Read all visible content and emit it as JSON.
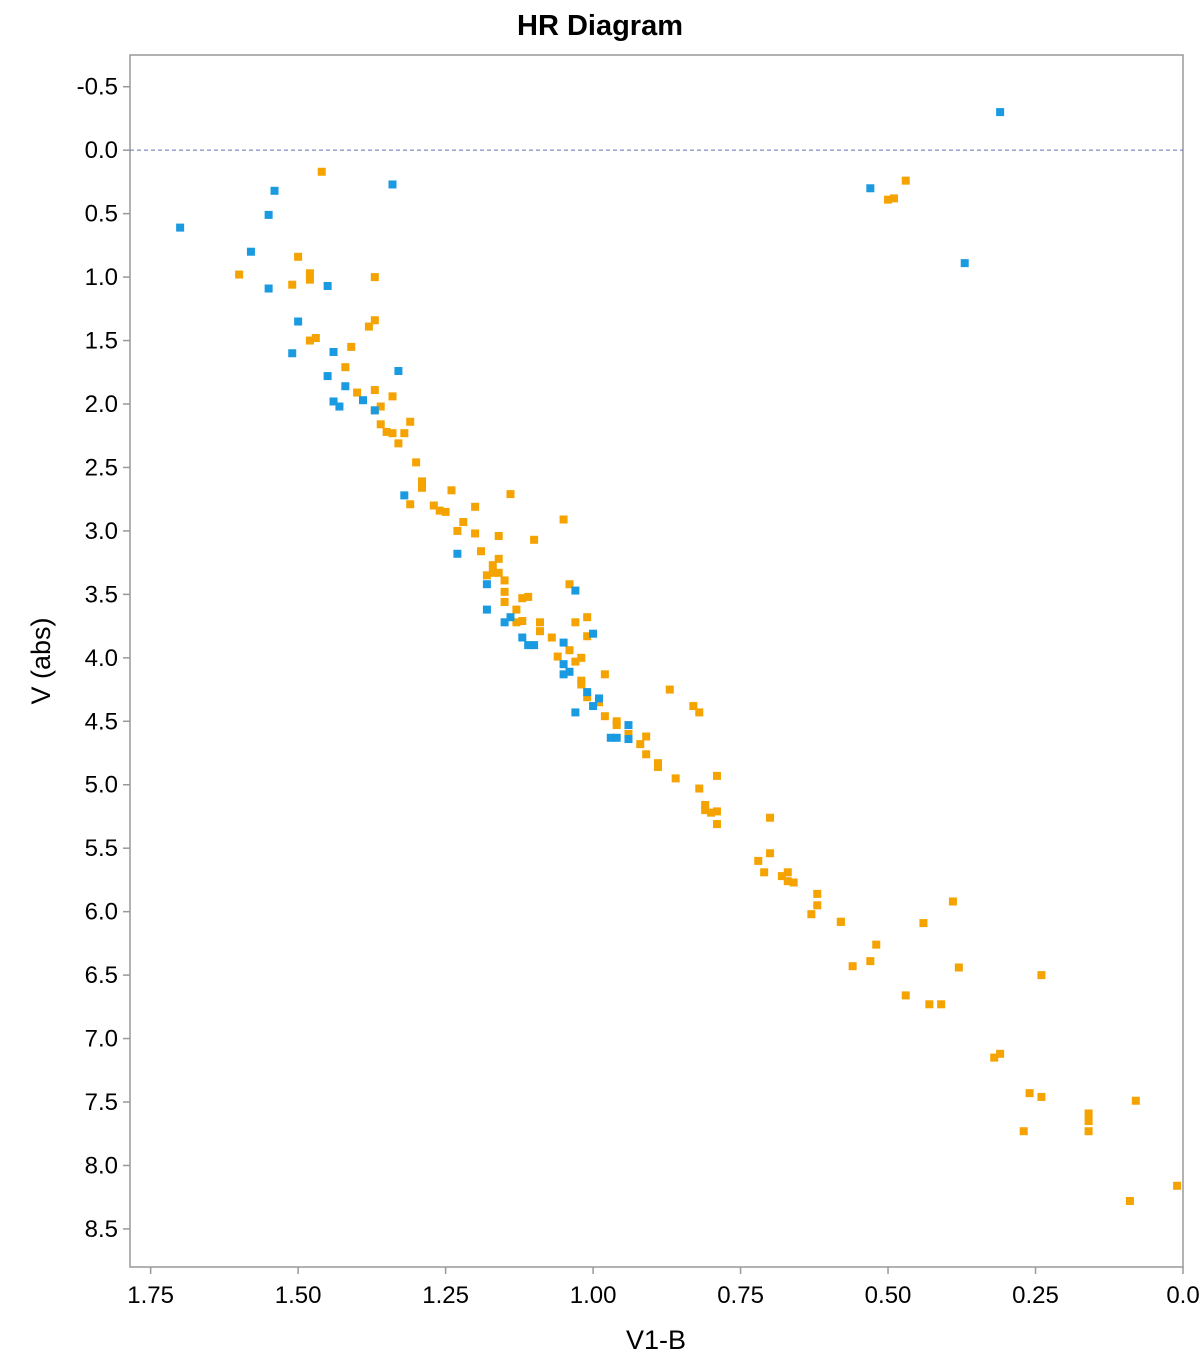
{
  "chart_data": {
    "type": "scatter",
    "title": "HR Diagram",
    "xlabel": "V1-B",
    "ylabel": "V (abs)",
    "xlim": [
      1.785,
      0.0
    ],
    "ylim": [
      -0.75,
      8.8
    ],
    "x_reversed": true,
    "y_reversed": true,
    "x_ticks": [
      "1.75",
      "1.50",
      "1.25",
      "1.00",
      "0.75",
      "0.50",
      "0.25",
      "0.0"
    ],
    "y_ticks": [
      "-0.5",
      "0.0",
      "0.5",
      "1.0",
      "1.5",
      "2.0",
      "2.5",
      "3.0",
      "3.5",
      "4.0",
      "4.5",
      "5.0",
      "5.5",
      "6.0",
      "6.5",
      "7.0",
      "7.5",
      "8.0",
      "8.5"
    ],
    "reference_line": {
      "y": 0.0,
      "style": "dashed",
      "color": "#6670b8"
    },
    "grid": false,
    "series": [
      {
        "color": "#f5a300",
        "x": [
          1.46,
          1.6,
          1.5,
          1.51,
          1.48,
          1.48,
          1.37,
          1.47,
          1.48,
          1.37,
          1.38,
          1.41,
          1.42,
          1.4,
          1.37,
          1.34,
          1.36,
          1.37,
          1.35,
          1.36,
          1.34,
          1.33,
          1.31,
          1.32,
          1.3,
          1.29,
          1.29,
          1.24,
          1.14,
          1.27,
          1.26,
          1.31,
          1.25,
          1.2,
          1.22,
          1.23,
          1.05,
          1.2,
          1.16,
          1.1,
          1.19,
          1.16,
          1.17,
          1.17,
          1.16,
          1.15,
          1.18,
          1.04,
          1.15,
          1.12,
          1.13,
          1.11,
          1.15,
          1.12,
          1.13,
          1.01,
          1.03,
          1.09,
          1.09,
          1.07,
          1.04,
          1.06,
          1.01,
          1.03,
          1.02,
          1.02,
          0.98,
          1.02,
          1.01,
          0.87,
          0.83,
          0.82,
          0.99,
          0.98,
          0.96,
          0.96,
          0.94,
          0.92,
          0.91,
          0.91,
          0.89,
          0.89,
          0.86,
          0.79,
          0.82,
          0.81,
          0.81,
          0.79,
          0.8,
          0.79,
          0.7,
          0.72,
          0.7,
          0.71,
          0.68,
          0.67,
          0.67,
          0.66,
          0.62,
          0.62,
          0.58,
          0.58,
          0.63,
          0.39,
          0.44,
          0.52,
          0.56,
          0.53,
          0.38,
          0.24,
          0.47,
          0.43,
          0.41,
          0.32,
          0.31,
          0.26,
          0.24,
          0.08,
          0.16,
          0.16,
          0.16,
          0.27,
          0.09,
          0.01,
          0.47,
          0.5,
          0.49
        ],
        "y": [
          0.17,
          0.98,
          0.84,
          1.06,
          0.97,
          1.02,
          1.0,
          1.48,
          1.5,
          1.34,
          1.39,
          1.55,
          1.71,
          1.91,
          1.89,
          1.94,
          2.02,
          2.05,
          2.22,
          2.16,
          2.23,
          2.31,
          2.14,
          2.23,
          2.46,
          2.61,
          2.66,
          2.68,
          2.71,
          2.8,
          2.84,
          2.79,
          2.85,
          2.81,
          2.93,
          3.0,
          2.91,
          3.02,
          3.04,
          3.07,
          3.16,
          3.22,
          3.27,
          3.33,
          3.33,
          3.39,
          3.35,
          3.42,
          3.48,
          3.53,
          3.62,
          3.52,
          3.56,
          3.71,
          3.72,
          3.68,
          3.72,
          3.72,
          3.79,
          3.84,
          3.94,
          3.99,
          3.83,
          4.03,
          4.0,
          4.18,
          4.13,
          4.21,
          4.31,
          4.25,
          4.38,
          4.43,
          4.35,
          4.46,
          4.5,
          4.53,
          4.6,
          4.68,
          4.62,
          4.76,
          4.83,
          4.86,
          4.95,
          4.93,
          5.03,
          5.16,
          5.2,
          5.21,
          5.22,
          5.31,
          5.26,
          5.6,
          5.54,
          5.69,
          5.72,
          5.69,
          5.76,
          5.77,
          5.86,
          5.95,
          6.08,
          6.08,
          6.02,
          5.92,
          6.09,
          6.26,
          6.43,
          6.39,
          6.44,
          6.5,
          6.66,
          6.73,
          6.73,
          7.15,
          7.12,
          7.43,
          7.46,
          7.49,
          7.59,
          7.65,
          7.73,
          7.73,
          8.28,
          8.16,
          0.24,
          0.39,
          0.38
        ]
      },
      {
        "color": "#1a9ae0",
        "x": [
          0.31,
          1.34,
          0.53,
          1.54,
          1.55,
          1.7,
          1.58,
          1.55,
          1.45,
          0.37,
          1.5,
          1.51,
          1.44,
          1.33,
          1.45,
          1.42,
          1.44,
          1.43,
          1.39,
          1.37,
          1.32,
          1.23,
          1.18,
          1.18,
          1.03,
          1.14,
          1.15,
          1.0,
          1.12,
          1.11,
          1.1,
          1.05,
          1.05,
          1.05,
          1.04,
          1.01,
          0.99,
          1.0,
          1.03,
          0.94,
          0.97,
          0.96,
          0.94
        ],
        "y": [
          -0.3,
          0.27,
          0.3,
          0.32,
          0.51,
          0.61,
          0.8,
          1.09,
          1.07,
          0.89,
          1.35,
          1.6,
          1.59,
          1.74,
          1.78,
          1.86,
          1.98,
          2.02,
          1.97,
          2.05,
          2.72,
          3.18,
          3.42,
          3.62,
          3.47,
          3.68,
          3.72,
          3.81,
          3.84,
          3.9,
          3.9,
          3.88,
          4.05,
          4.13,
          4.11,
          4.27,
          4.32,
          4.38,
          4.43,
          4.53,
          4.63,
          4.63,
          4.64
        ]
      }
    ]
  }
}
